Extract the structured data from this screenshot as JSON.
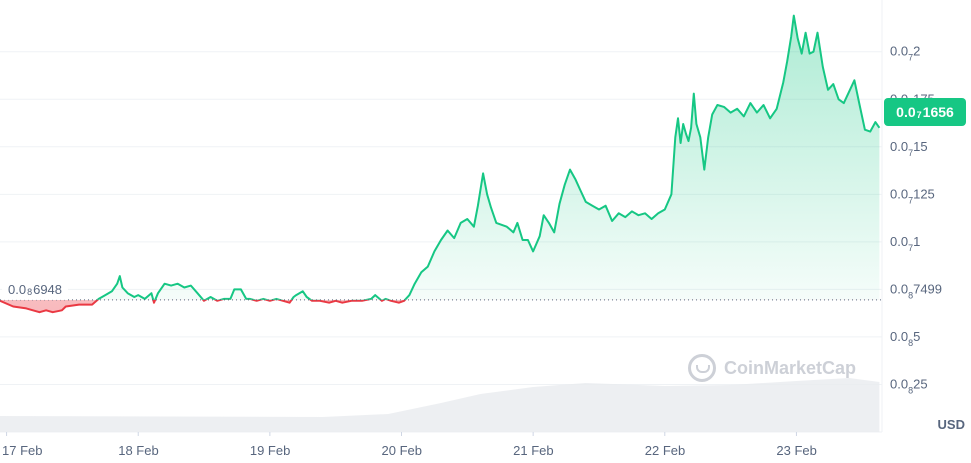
{
  "colors": {
    "up": "#16c784",
    "down": "#ea3943",
    "grid": "#eff2f5",
    "text": "#58667e",
    "volume": "#e8ebef"
  },
  "currency": "USD",
  "watermark_text": "CoinMarketCap",
  "current_price": {
    "prefix": "0.0",
    "zeros": "7",
    "digits": "1656",
    "value": 1.656e-08
  },
  "baseline_price": {
    "prefix": "0.0",
    "zeros": "8",
    "digits": "6948",
    "value": 6.948e-09
  },
  "y_axis_labels": [
    {
      "prefix": "0.0",
      "zeros": "7",
      "digits": "2",
      "value": 2e-08
    },
    {
      "prefix": "0.0",
      "zeros": "7",
      "digits": "175",
      "value": 1.75e-08
    },
    {
      "prefix": "0.0",
      "zeros": "7",
      "digits": "15",
      "value": 1.5e-08
    },
    {
      "prefix": "0.0",
      "zeros": "7",
      "digits": "125",
      "value": 1.25e-08
    },
    {
      "prefix": "0.0",
      "zeros": "7",
      "digits": "1",
      "value": 1e-08
    },
    {
      "prefix": "0.0",
      "zeros": "8",
      "digits": "7499",
      "value": 7.499e-09
    },
    {
      "prefix": "0.0",
      "zeros": "8",
      "digits": "5",
      "value": 5e-09
    },
    {
      "prefix": "0.0",
      "zeros": "8",
      "digits": "25",
      "value": 2.5e-09
    }
  ],
  "x_axis_labels": [
    "17 Feb",
    "18 Feb",
    "19 Feb",
    "20 Feb",
    "21 Feb",
    "22 Feb",
    "23 Feb"
  ],
  "chart_data": {
    "type": "area",
    "x_unit": "days since 17 Feb",
    "y_unit": "price (units of 1e-8 USD)",
    "baseline": 0.6948,
    "xlim": [
      -0.05,
      6.65
    ],
    "ylim": [
      0.0,
      2.23
    ],
    "grid": true,
    "series": [
      {
        "name": "Price",
        "points": [
          [
            -0.05,
            0.69
          ],
          [
            0.05,
            0.66
          ],
          [
            0.15,
            0.65
          ],
          [
            0.25,
            0.63
          ],
          [
            0.3,
            0.64
          ],
          [
            0.35,
            0.63
          ],
          [
            0.42,
            0.64
          ],
          [
            0.45,
            0.66
          ],
          [
            0.55,
            0.67
          ],
          [
            0.65,
            0.67
          ],
          [
            0.7,
            0.7
          ],
          [
            0.75,
            0.72
          ],
          [
            0.8,
            0.74
          ],
          [
            0.84,
            0.78
          ],
          [
            0.86,
            0.82
          ],
          [
            0.88,
            0.76
          ],
          [
            0.92,
            0.73
          ],
          [
            0.97,
            0.71
          ],
          [
            1.0,
            0.72
          ],
          [
            1.05,
            0.7
          ],
          [
            1.1,
            0.73
          ],
          [
            1.12,
            0.68
          ],
          [
            1.15,
            0.73
          ],
          [
            1.2,
            0.78
          ],
          [
            1.25,
            0.77
          ],
          [
            1.3,
            0.78
          ],
          [
            1.35,
            0.76
          ],
          [
            1.4,
            0.77
          ],
          [
            1.45,
            0.73
          ],
          [
            1.5,
            0.69
          ],
          [
            1.55,
            0.71
          ],
          [
            1.6,
            0.69
          ],
          [
            1.65,
            0.7
          ],
          [
            1.7,
            0.7
          ],
          [
            1.73,
            0.75
          ],
          [
            1.78,
            0.75
          ],
          [
            1.82,
            0.7
          ],
          [
            1.85,
            0.7
          ],
          [
            1.9,
            0.69
          ],
          [
            1.95,
            0.7
          ],
          [
            2.0,
            0.69
          ],
          [
            2.05,
            0.7
          ],
          [
            2.1,
            0.69
          ],
          [
            2.15,
            0.68
          ],
          [
            2.18,
            0.71
          ],
          [
            2.2,
            0.72
          ],
          [
            2.25,
            0.74
          ],
          [
            2.28,
            0.71
          ],
          [
            2.32,
            0.69
          ],
          [
            2.38,
            0.69
          ],
          [
            2.45,
            0.68
          ],
          [
            2.5,
            0.69
          ],
          [
            2.55,
            0.68
          ],
          [
            2.62,
            0.69
          ],
          [
            2.7,
            0.69
          ],
          [
            2.77,
            0.7
          ],
          [
            2.8,
            0.72
          ],
          [
            2.85,
            0.69
          ],
          [
            2.88,
            0.7
          ],
          [
            2.92,
            0.69
          ],
          [
            2.98,
            0.68
          ],
          [
            3.02,
            0.69
          ],
          [
            3.06,
            0.72
          ],
          [
            3.1,
            0.78
          ],
          [
            3.15,
            0.84
          ],
          [
            3.2,
            0.87
          ],
          [
            3.25,
            0.95
          ],
          [
            3.3,
            1.01
          ],
          [
            3.35,
            1.06
          ],
          [
            3.4,
            1.02
          ],
          [
            3.45,
            1.1
          ],
          [
            3.5,
            1.12
          ],
          [
            3.55,
            1.08
          ],
          [
            3.58,
            1.19
          ],
          [
            3.62,
            1.36
          ],
          [
            3.65,
            1.25
          ],
          [
            3.68,
            1.18
          ],
          [
            3.72,
            1.1
          ],
          [
            3.8,
            1.08
          ],
          [
            3.85,
            1.05
          ],
          [
            3.88,
            1.1
          ],
          [
            3.92,
            1.01
          ],
          [
            3.96,
            1.01
          ],
          [
            4.0,
            0.95
          ],
          [
            4.05,
            1.03
          ],
          [
            4.08,
            1.14
          ],
          [
            4.12,
            1.1
          ],
          [
            4.16,
            1.05
          ],
          [
            4.2,
            1.2
          ],
          [
            4.24,
            1.3
          ],
          [
            4.28,
            1.38
          ],
          [
            4.32,
            1.33
          ],
          [
            4.36,
            1.27
          ],
          [
            4.4,
            1.21
          ],
          [
            4.45,
            1.19
          ],
          [
            4.5,
            1.17
          ],
          [
            4.55,
            1.19
          ],
          [
            4.6,
            1.11
          ],
          [
            4.65,
            1.15
          ],
          [
            4.7,
            1.13
          ],
          [
            4.75,
            1.16
          ],
          [
            4.8,
            1.14
          ],
          [
            4.85,
            1.15
          ],
          [
            4.9,
            1.12
          ],
          [
            4.95,
            1.15
          ],
          [
            5.0,
            1.17
          ],
          [
            5.05,
            1.25
          ],
          [
            5.08,
            1.55
          ],
          [
            5.1,
            1.65
          ],
          [
            5.12,
            1.52
          ],
          [
            5.14,
            1.62
          ],
          [
            5.16,
            1.57
          ],
          [
            5.18,
            1.53
          ],
          [
            5.2,
            1.6
          ],
          [
            5.22,
            1.78
          ],
          [
            5.24,
            1.62
          ],
          [
            5.27,
            1.55
          ],
          [
            5.3,
            1.38
          ],
          [
            5.33,
            1.55
          ],
          [
            5.36,
            1.67
          ],
          [
            5.4,
            1.72
          ],
          [
            5.45,
            1.71
          ],
          [
            5.5,
            1.68
          ],
          [
            5.55,
            1.7
          ],
          [
            5.6,
            1.66
          ],
          [
            5.65,
            1.73
          ],
          [
            5.7,
            1.68
          ],
          [
            5.75,
            1.72
          ],
          [
            5.8,
            1.65
          ],
          [
            5.85,
            1.7
          ],
          [
            5.9,
            1.84
          ],
          [
            5.93,
            1.95
          ],
          [
            5.96,
            2.08
          ],
          [
            5.98,
            2.19
          ],
          [
            6.01,
            2.07
          ],
          [
            6.04,
            1.99
          ],
          [
            6.07,
            2.1
          ],
          [
            6.1,
            1.99
          ],
          [
            6.13,
            2.0
          ],
          [
            6.16,
            2.1
          ],
          [
            6.2,
            1.92
          ],
          [
            6.24,
            1.8
          ],
          [
            6.28,
            1.83
          ],
          [
            6.32,
            1.75
          ],
          [
            6.36,
            1.73
          ],
          [
            6.4,
            1.79
          ],
          [
            6.44,
            1.85
          ],
          [
            6.48,
            1.72
          ],
          [
            6.52,
            1.59
          ],
          [
            6.56,
            1.58
          ],
          [
            6.6,
            1.63
          ],
          [
            6.63,
            1.6
          ]
        ]
      }
    ]
  }
}
